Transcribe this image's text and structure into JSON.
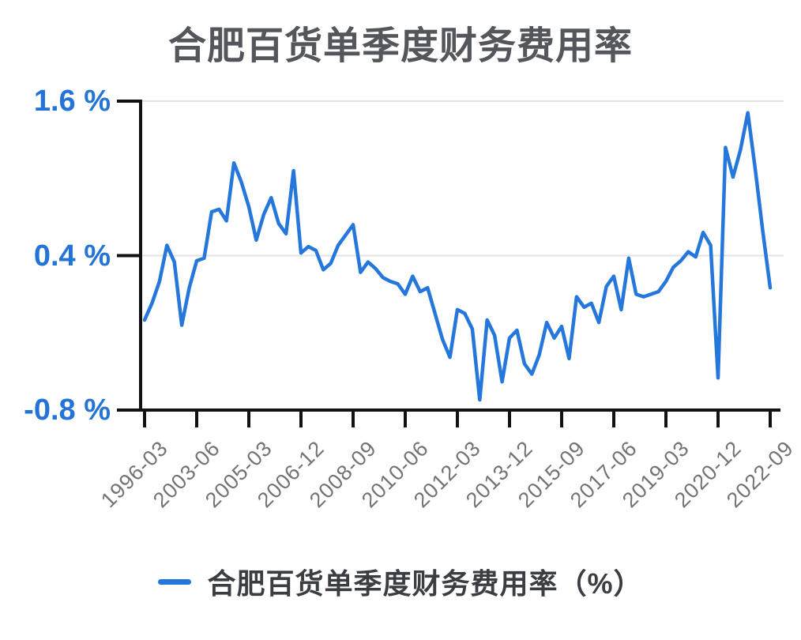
{
  "chart_data": {
    "type": "line",
    "title": "合肥百货单季度财务费用率",
    "legend": "合肥百货单季度财务费用率（%）",
    "unit": "%",
    "ylim": [
      -0.8,
      1.6
    ],
    "grid": "horizontal-only",
    "legend_position": "bottom-center",
    "yticks": [
      {
        "label": "1.6 %",
        "value": 1.6
      },
      {
        "label": "0.4 %",
        "value": 0.4
      },
      {
        "label": "-0.8 %",
        "value": -0.8
      }
    ],
    "gridline_values": [
      1.6,
      0.4
    ],
    "xtick_labels": [
      "1996-03",
      "2003-06",
      "2005-03",
      "2006-12",
      "2008-09",
      "2010-06",
      "2012-03",
      "2013-12",
      "2015-09",
      "2017-06",
      "2019-03",
      "2020-12",
      "2022-09"
    ],
    "xtick_indices": [
      0,
      7,
      14,
      21,
      28,
      35,
      42,
      49,
      56,
      63,
      70,
      77,
      84
    ],
    "series": [
      {
        "name": "合肥百货单季度财务费用率（%）",
        "values": [
          -0.1,
          0.03,
          0.2,
          0.48,
          0.35,
          -0.14,
          0.15,
          0.36,
          0.38,
          0.74,
          0.76,
          0.67,
          1.12,
          0.97,
          0.78,
          0.52,
          0.72,
          0.85,
          0.65,
          0.57,
          1.06,
          0.42,
          0.47,
          0.44,
          0.29,
          0.34,
          0.48,
          0.56,
          0.64,
          0.27,
          0.35,
          0.3,
          0.23,
          0.2,
          0.18,
          0.1,
          0.24,
          0.12,
          0.15,
          -0.05,
          -0.25,
          -0.39,
          -0.02,
          -0.05,
          -0.17,
          -0.72,
          -0.1,
          -0.22,
          -0.58,
          -0.24,
          -0.18,
          -0.44,
          -0.52,
          -0.37,
          -0.12,
          -0.24,
          -0.15,
          -0.4,
          0.08,
          0.0,
          0.03,
          -0.12,
          0.16,
          0.24,
          -0.02,
          0.38,
          0.1,
          0.08,
          0.1,
          0.12,
          0.2,
          0.31,
          0.36,
          0.43,
          0.39,
          0.58,
          0.48,
          -0.55,
          1.24,
          1.01,
          1.22,
          1.51,
          1.07,
          0.59,
          0.15
        ]
      }
    ],
    "colors": {
      "line": "#2577DC",
      "ytick_label": "#2474D8",
      "xtick_label": "#737373",
      "title_text": "#53565B",
      "legend_text": "#3A3E43",
      "gridline": "#E3E3E3",
      "axis": "#111111",
      "background": "#FFFFFF"
    }
  }
}
